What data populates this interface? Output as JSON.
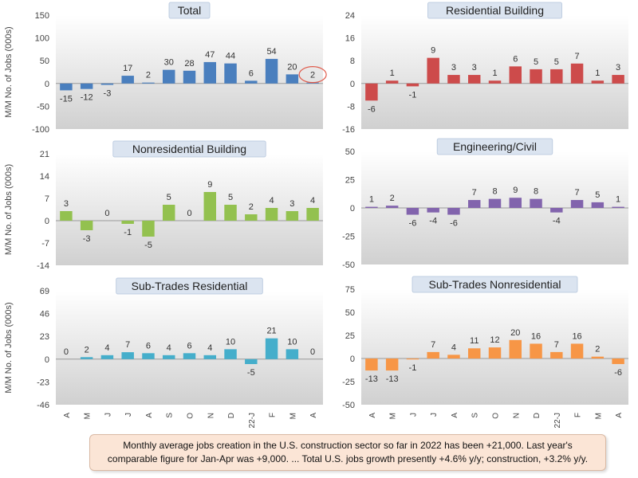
{
  "chart_data": [
    {
      "type": "bar",
      "title": "Total",
      "ylabel": "M/M No. of Jobs (000s)",
      "xlabel": "",
      "categories": [
        "A",
        "M",
        "J",
        "J",
        "A",
        "S",
        "O",
        "N",
        "D",
        "22-J",
        "F",
        "M",
        "A"
      ],
      "values": [
        -15,
        -12,
        -3,
        17,
        2,
        30,
        28,
        47,
        44,
        6,
        54,
        20,
        2
      ],
      "ylim": [
        -100,
        150
      ],
      "yticks": [
        "-100",
        "-50",
        "0",
        "50",
        "100",
        "150"
      ],
      "color": "#4a7fbe",
      "highlight_index": 12,
      "highlight_color": "#e05b4b"
    },
    {
      "type": "bar",
      "title": "Residential Building",
      "ylabel": "",
      "xlabel": "",
      "categories": [
        "A",
        "M",
        "J",
        "J",
        "A",
        "S",
        "O",
        "N",
        "D",
        "22-J",
        "F",
        "M",
        "A"
      ],
      "values": [
        -6,
        1,
        -1,
        9,
        3,
        3,
        1,
        6,
        5,
        5,
        7,
        1,
        3
      ],
      "ylim": [
        -16,
        24
      ],
      "yticks": [
        "-16",
        "-8",
        "0",
        "8",
        "16",
        "24"
      ],
      "color": "#cd4b4b"
    },
    {
      "type": "bar",
      "title": "Nonresidential Building",
      "ylabel": "M/M No. of Jobs (000s)",
      "xlabel": "",
      "categories": [
        "A",
        "M",
        "J",
        "J",
        "A",
        "S",
        "O",
        "N",
        "D",
        "22-J",
        "F",
        "M",
        "A"
      ],
      "values": [
        3,
        -3,
        0,
        -1,
        -5,
        5,
        0,
        9,
        5,
        2,
        4,
        3,
        4
      ],
      "ylim": [
        -14,
        21
      ],
      "yticks": [
        "-14",
        "-7",
        "0",
        "7",
        "14",
        "21"
      ],
      "color": "#93c14f"
    },
    {
      "type": "bar",
      "title": "Engineering/Civil",
      "ylabel": "",
      "xlabel": "",
      "categories": [
        "A",
        "M",
        "J",
        "J",
        "A",
        "S",
        "O",
        "N",
        "D",
        "22-J",
        "F",
        "M",
        "A"
      ],
      "values": [
        1,
        2,
        -6,
        -4,
        -6,
        7,
        8,
        9,
        8,
        -4,
        7,
        5,
        1
      ],
      "ylim": [
        -50,
        50
      ],
      "yticks": [
        "-50",
        "-25",
        "0",
        "25",
        "50"
      ],
      "color": "#8264ad"
    },
    {
      "type": "bar",
      "title": "Sub-Trades Residential",
      "ylabel": "M/M No. of Jobs (000s)",
      "xlabel": "",
      "categories": [
        "A",
        "M",
        "J",
        "J",
        "A",
        "S",
        "O",
        "N",
        "D",
        "22-J",
        "F",
        "M",
        "A"
      ],
      "values": [
        0,
        2,
        4,
        7,
        6,
        4,
        6,
        4,
        10,
        -5,
        21,
        10,
        0
      ],
      "ylim": [
        -46,
        69
      ],
      "yticks": [
        "-46",
        "-23",
        "0",
        "23",
        "46",
        "69"
      ],
      "color": "#45aecb"
    },
    {
      "type": "bar",
      "title": "Sub-Trades Nonresidential",
      "ylabel": "",
      "xlabel": "",
      "categories": [
        "A",
        "M",
        "J",
        "J",
        "A",
        "S",
        "O",
        "N",
        "D",
        "22-J",
        "F",
        "M",
        "A"
      ],
      "values": [
        -13,
        -13,
        -1,
        7,
        4,
        11,
        12,
        20,
        16,
        7,
        16,
        2,
        -6
      ],
      "ylim": [
        -50,
        75
      ],
      "yticks": [
        "-50",
        "-25",
        "0",
        "25",
        "50",
        "75"
      ],
      "color": "#f79646"
    }
  ],
  "footer_note": "Monthly average jobs creation in the U.S. construction sector so far in 2022 has been +21,000. Last year's comparable figure for Jan-Apr was +9,000. ... Total U.S. jobs growth presently +4.6% y/y; construction, +3.2% y/y.",
  "colors": {
    "plot_bg_top": "#ffffff",
    "plot_bg_bottom": "#d0d0d0",
    "title_bg": "#dbe4f0",
    "title_border": "#b4c5dc",
    "axis_text": "#444444"
  }
}
